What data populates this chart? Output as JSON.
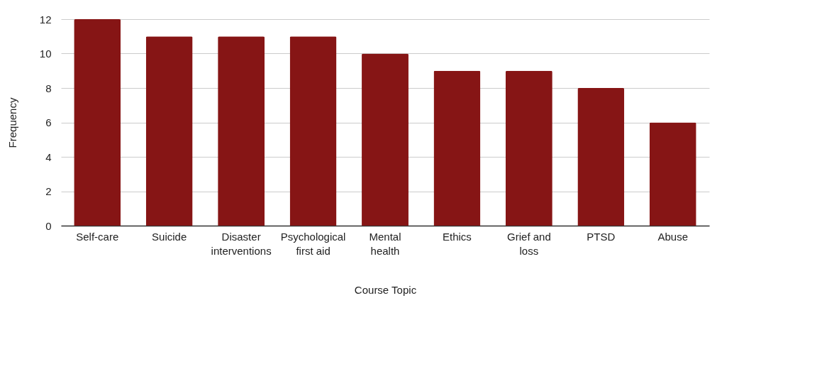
{
  "chart_data": {
    "type": "bar",
    "xlabel": "Course Topic",
    "ylabel": "Frequency",
    "categories": [
      "Self-care",
      "Suicide",
      "Disaster interventions",
      "Psychological first aid",
      "Mental health",
      "Ethics",
      "Grief and loss",
      "PTSD",
      "Abuse"
    ],
    "values": [
      12,
      11,
      11,
      11,
      10,
      9,
      9,
      8,
      6
    ],
    "color": "#861515",
    "ylim": [
      0,
      12
    ],
    "yticks": [
      0,
      2,
      4,
      6,
      8,
      10,
      12
    ],
    "grid": "y"
  }
}
